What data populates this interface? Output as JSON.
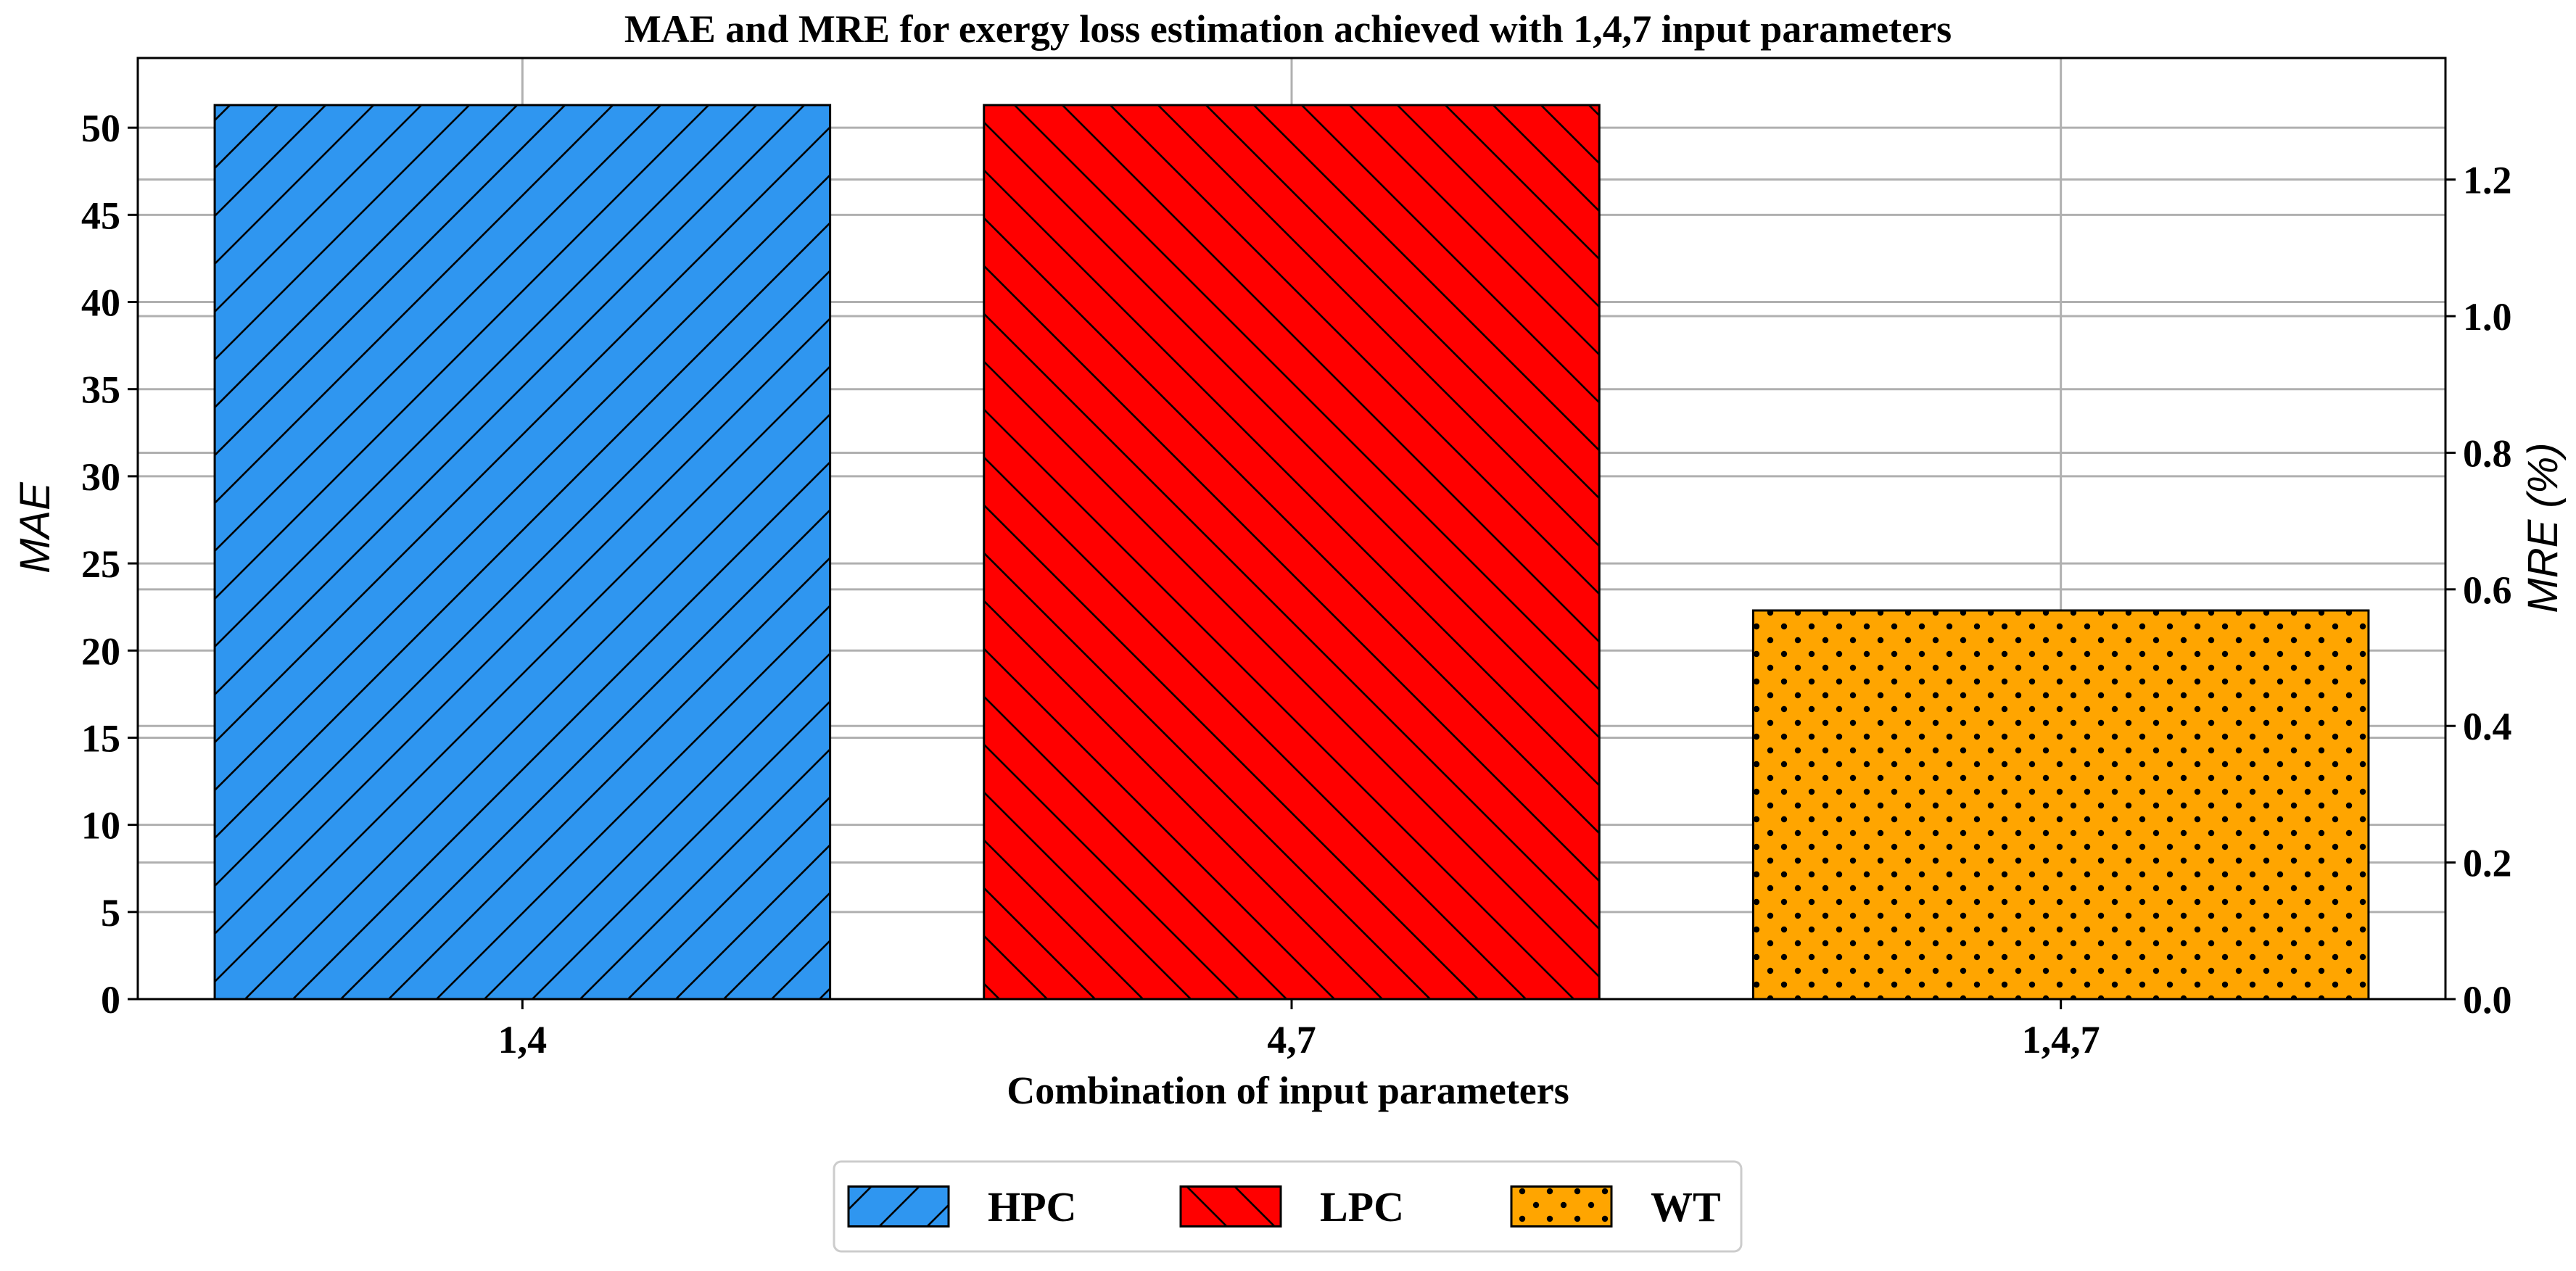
{
  "chart_data": {
    "type": "bar",
    "title": "MAE and MRE for exergy loss estimation achieved with 1,4,7 input parameters",
    "xlabel": "Combination of input parameters",
    "ylabel": "MAE",
    "y2label": "MRE (%)",
    "categories": [
      "1,4",
      "4,7",
      "1,4,7"
    ],
    "series": [
      {
        "name": "HPC",
        "values": [
          51.3,
          0,
          0
        ],
        "color": "#2f96f0",
        "hatch": "forward-diagonal"
      },
      {
        "name": "LPC",
        "values": [
          0,
          51.3,
          0
        ],
        "color": "#ff0000",
        "hatch": "back-diagonal"
      },
      {
        "name": "WT",
        "values": [
          0,
          0,
          22.3
        ],
        "color": "#ffa500",
        "hatch": "dots"
      }
    ],
    "ylim": [
      0,
      54
    ],
    "y_ticks": [
      0,
      5,
      10,
      15,
      20,
      25,
      30,
      35,
      40,
      45,
      50
    ],
    "y_tick_labels": [
      "0",
      "5",
      "10",
      "15",
      "20",
      "25",
      "30",
      "35",
      "40",
      "45",
      "50"
    ],
    "y2lim": [
      0,
      1.378
    ],
    "y2_ticks": [
      0.0,
      0.2,
      0.4,
      0.6,
      0.8,
      1.0,
      1.2
    ],
    "y2_tick_labels": [
      "0.0",
      "0.2",
      "0.4",
      "0.6",
      "0.8",
      "1.0",
      "1.2"
    ],
    "grid": true,
    "legend": {
      "position": "bottom-center",
      "entries": [
        "HPC",
        "LPC",
        "WT"
      ]
    }
  }
}
